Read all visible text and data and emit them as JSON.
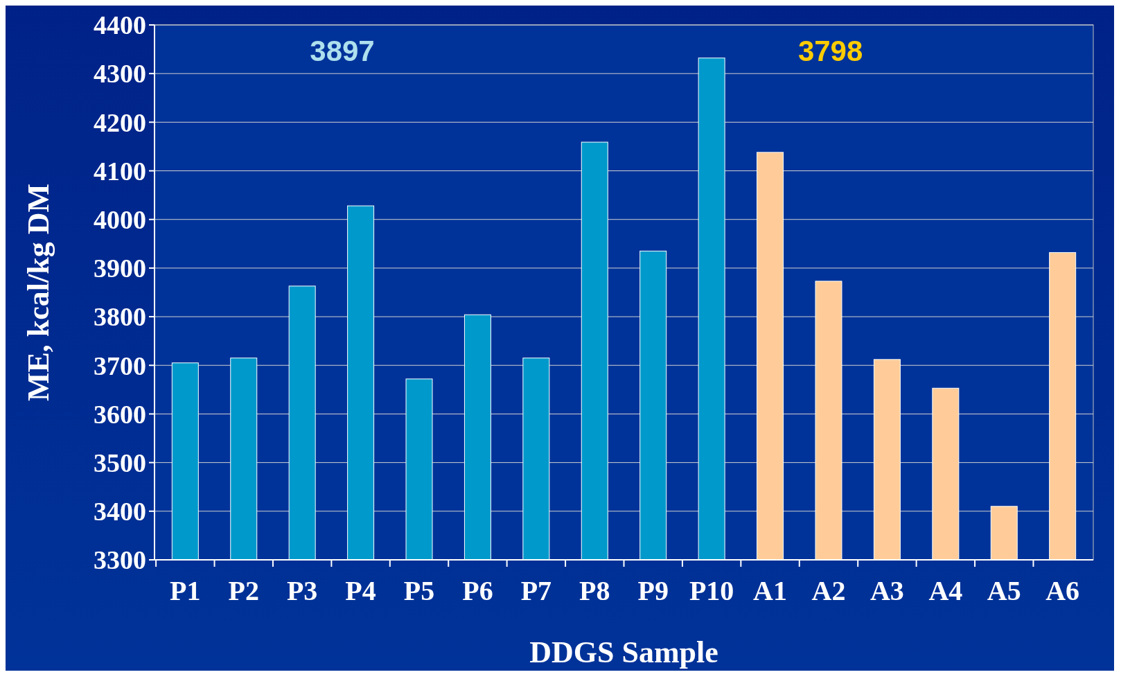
{
  "chart_data": {
    "type": "bar",
    "xlabel": "DDGS Sample",
    "ylabel": "ME, kcal/kg DM",
    "categories": [
      "P1",
      "P2",
      "P3",
      "P4",
      "P5",
      "P6",
      "P7",
      "P8",
      "P9",
      "P10",
      "A1",
      "A2",
      "A3",
      "A4",
      "A5",
      "A6"
    ],
    "values": [
      3705,
      3715,
      3863,
      4028,
      3672,
      3804,
      3715,
      4159,
      3935,
      4332,
      4138,
      3873,
      3712,
      3653,
      3410,
      3932
    ],
    "colors": [
      "#0099cc",
      "#0099cc",
      "#0099cc",
      "#0099cc",
      "#0099cc",
      "#0099cc",
      "#0099cc",
      "#0099cc",
      "#0099cc",
      "#0099cc",
      "#ffcc99",
      "#ffcc99",
      "#ffcc99",
      "#ffcc99",
      "#ffcc99",
      "#ffcc99"
    ],
    "ylim": [
      3300,
      4400
    ],
    "yticks": [
      3300,
      3400,
      3500,
      3600,
      3700,
      3800,
      3900,
      4000,
      4100,
      4200,
      4300,
      4400
    ],
    "grid": "y",
    "annotations": [
      "3897",
      "3798"
    ]
  }
}
